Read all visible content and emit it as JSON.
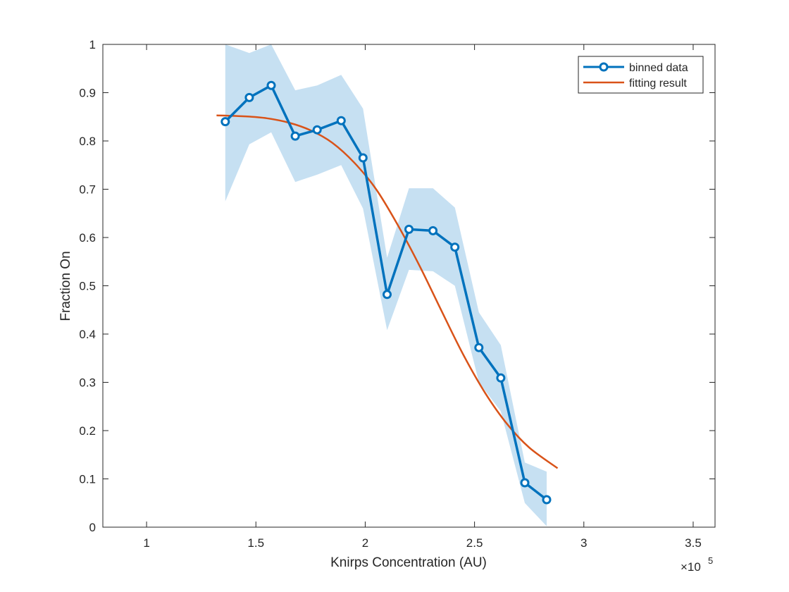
{
  "chart_data": {
    "type": "line",
    "title": "",
    "xlabel": "Knirps Concentration (AU)",
    "ylabel": "Fraction On",
    "x_exponent_base": "×10",
    "x_exponent_power": "5",
    "xlim": [
      0.8,
      3.6
    ],
    "ylim": [
      0,
      1
    ],
    "xticks": [
      1,
      1.5,
      2,
      2.5,
      3,
      3.5
    ],
    "yticks": [
      0,
      0.1,
      0.2,
      0.3,
      0.4,
      0.5,
      0.6,
      0.7,
      0.8,
      0.9,
      1
    ],
    "x_tick_labels": [
      "1",
      "1.5",
      "2",
      "2.5",
      "3",
      "3.5"
    ],
    "y_tick_labels": [
      "0",
      "0.1",
      "0.2",
      "0.3",
      "0.4",
      "0.5",
      "0.6",
      "0.7",
      "0.8",
      "0.9",
      "1"
    ],
    "grid": false,
    "legend_position": "top-right",
    "colors": {
      "binned": "#0072BD",
      "fit": "#D95319",
      "band": "#C6E0F2"
    },
    "series": [
      {
        "name": "binned data",
        "style": "line-with-circle-markers",
        "x": [
          1.36,
          1.47,
          1.57,
          1.68,
          1.78,
          1.89,
          1.99,
          2.1,
          2.2,
          2.31,
          2.41,
          2.52,
          2.62,
          2.73,
          2.83
        ],
        "y": [
          0.84,
          0.89,
          0.915,
          0.81,
          0.823,
          0.842,
          0.765,
          0.482,
          0.617,
          0.614,
          0.58,
          0.372,
          0.309,
          0.092,
          0.057
        ],
        "y_lower": [
          0.675,
          0.793,
          0.818,
          0.715,
          0.73,
          0.75,
          0.66,
          0.408,
          0.533,
          0.53,
          0.5,
          0.3,
          0.24,
          0.05,
          0.002
        ],
        "y_upper": [
          1.0,
          0.982,
          1.0,
          0.905,
          0.915,
          0.937,
          0.867,
          0.558,
          0.702,
          0.702,
          0.662,
          0.445,
          0.377,
          0.134,
          0.115
        ]
      },
      {
        "name": "fitting result",
        "style": "smooth-line",
        "x": [
          1.32,
          1.45,
          1.55,
          1.65,
          1.75,
          1.85,
          1.95,
          2.05,
          2.15,
          2.25,
          2.35,
          2.45,
          2.55,
          2.65,
          2.75,
          2.88
        ],
        "y": [
          0.853,
          0.851,
          0.847,
          0.838,
          0.822,
          0.796,
          0.755,
          0.7,
          0.625,
          0.54,
          0.447,
          0.356,
          0.277,
          0.213,
          0.165,
          0.122
        ]
      }
    ]
  }
}
